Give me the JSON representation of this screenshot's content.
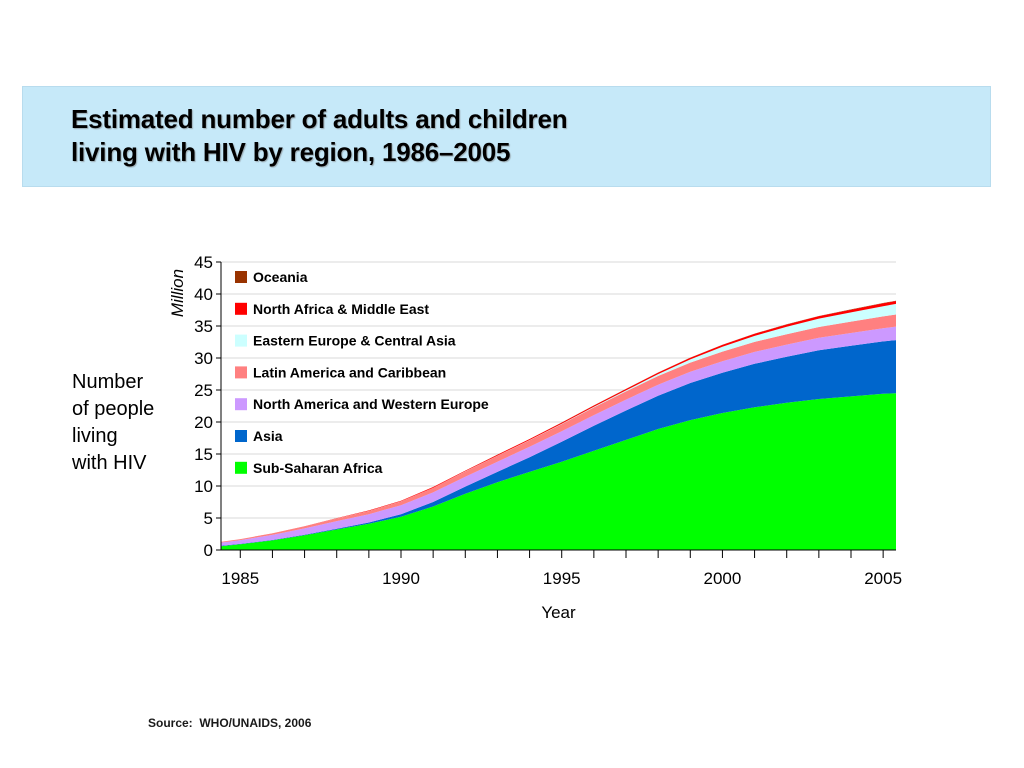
{
  "title": {
    "line1": "Estimated number of adults and children",
    "line2": "living with HIV by region, 1986–2005"
  },
  "side_label": [
    "Number",
    "of people",
    "living",
    "with HIV"
  ],
  "source": "Source:  WHO/UNAIDS, 2006",
  "chart_data": {
    "type": "area",
    "stacked": true,
    "ylabel": "Million",
    "xlabel": "Year",
    "ylim": [
      0,
      45
    ],
    "xlim": [
      1984.4,
      2005.4
    ],
    "yticks": [
      0,
      5,
      10,
      15,
      20,
      25,
      30,
      35,
      40,
      45
    ],
    "xticks": [
      1985,
      1990,
      1995,
      2000,
      2005
    ],
    "xtick_labels": [
      "1985",
      "1990",
      "1995",
      "2000",
      "2005"
    ],
    "grid": "horizontal",
    "legend_position": "top-left",
    "x": [
      1984.4,
      1985,
      1986,
      1987,
      1988,
      1989,
      1990,
      1991,
      1992,
      1993,
      1994,
      1995,
      1996,
      1997,
      1998,
      1999,
      2000,
      2001,
      2002,
      2003,
      2004,
      2005,
      2005.4
    ],
    "series": [
      {
        "name": "Sub-Saharan Africa",
        "color": "#00ff00",
        "values": [
          0.6,
          0.9,
          1.5,
          2.3,
          3.2,
          4.1,
          5.2,
          6.8,
          8.8,
          10.6,
          12.2,
          13.8,
          15.5,
          17.2,
          18.9,
          20.3,
          21.4,
          22.3,
          23.0,
          23.6,
          24.0,
          24.4,
          24.5
        ]
      },
      {
        "name": "Asia",
        "color": "#0066cc",
        "values": [
          0.05,
          0.05,
          0.06,
          0.08,
          0.12,
          0.2,
          0.4,
          0.7,
          1.1,
          1.6,
          2.3,
          3.1,
          3.9,
          4.6,
          5.2,
          5.8,
          6.3,
          6.8,
          7.2,
          7.6,
          7.9,
          8.2,
          8.3
        ]
      },
      {
        "name": "North America and Western Europe",
        "color": "#cc99ff",
        "values": [
          0.5,
          0.6,
          0.8,
          1.0,
          1.2,
          1.3,
          1.4,
          1.5,
          1.55,
          1.6,
          1.62,
          1.65,
          1.68,
          1.7,
          1.73,
          1.76,
          1.8,
          1.85,
          1.9,
          1.95,
          2.0,
          2.05,
          2.1
        ]
      },
      {
        "name": "Latin America and Caribbean",
        "color": "#ff8080",
        "values": [
          0.1,
          0.15,
          0.22,
          0.3,
          0.4,
          0.5,
          0.6,
          0.72,
          0.82,
          0.92,
          1.02,
          1.12,
          1.2,
          1.28,
          1.35,
          1.42,
          1.5,
          1.56,
          1.62,
          1.7,
          1.78,
          1.85,
          1.9
        ]
      },
      {
        "name": "Eastern Europe & Central Asia",
        "color": "#ccffff",
        "values": [
          0.0,
          0.0,
          0.0,
          0.0,
          0.01,
          0.01,
          0.01,
          0.02,
          0.02,
          0.03,
          0.04,
          0.06,
          0.1,
          0.16,
          0.3,
          0.5,
          0.75,
          0.95,
          1.15,
          1.3,
          1.45,
          1.6,
          1.65
        ]
      },
      {
        "name": "North Africa & Middle East",
        "color": "#ff0000",
        "values": [
          0.01,
          0.01,
          0.02,
          0.03,
          0.05,
          0.07,
          0.09,
          0.1,
          0.12,
          0.14,
          0.16,
          0.18,
          0.2,
          0.22,
          0.24,
          0.27,
          0.3,
          0.33,
          0.36,
          0.39,
          0.42,
          0.45,
          0.46
        ]
      },
      {
        "name": "Oceania",
        "color": "#993300",
        "values": [
          0.0,
          0.0,
          0.0,
          0.0,
          0.0,
          0.0,
          0.0,
          0.0,
          0.0,
          0.01,
          0.01,
          0.01,
          0.01,
          0.01,
          0.01,
          0.02,
          0.02,
          0.02,
          0.03,
          0.03,
          0.04,
          0.05,
          0.05
        ]
      }
    ]
  }
}
